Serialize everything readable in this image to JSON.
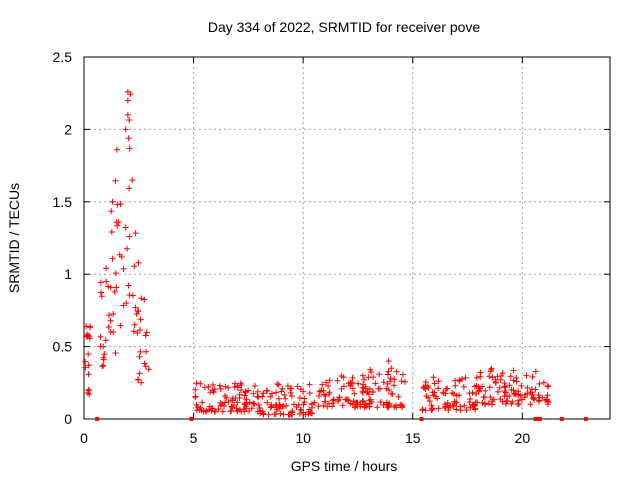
{
  "chart_data": {
    "type": "scatter",
    "title": "Day 334 of 2022, SRMTID for receiver pove",
    "xlabel": "GPS time / hours",
    "ylabel": "SRMTID / TECUs",
    "xlim": [
      0,
      24
    ],
    "ylim": [
      0,
      2.5
    ],
    "xticks": [
      0,
      5,
      10,
      15,
      20
    ],
    "yticks": [
      0,
      0.5,
      1,
      1.5,
      2,
      2.5
    ],
    "grid": true,
    "marker": "plus",
    "color": "#ff0000",
    "segments": [
      {
        "x_start": 0.0,
        "x_end": 0.3,
        "y_low": 0.15,
        "y_high": 0.45
      },
      {
        "x_start": 0.1,
        "x_end": 0.3,
        "y_low": 0.55,
        "y_high": 0.66
      },
      {
        "x_start": 0.6,
        "x_end": 1.0,
        "y_low": 0.35,
        "y_high": 1.0
      },
      {
        "x_start": 1.0,
        "x_end": 1.5,
        "y_low": 0.6,
        "y_high": 1.5
      },
      {
        "x_start": 1.4,
        "x_end": 1.8,
        "y_low": 0.3,
        "y_high": 1.8
      },
      {
        "x_start": 1.8,
        "x_end": 2.2,
        "y_low": 0.8,
        "y_high": 2.25
      },
      {
        "x_start": 2.2,
        "x_end": 2.5,
        "y_low": 0.4,
        "y_high": 1.6
      },
      {
        "x_start": 2.4,
        "x_end": 3.0,
        "y_low": 0.25,
        "y_high": 0.85
      },
      {
        "x_start": 5.0,
        "x_end": 8.0,
        "y_low": 0.05,
        "y_high": 0.25
      },
      {
        "x_start": 8.0,
        "x_end": 10.5,
        "y_low": 0.03,
        "y_high": 0.25
      },
      {
        "x_start": 10.5,
        "x_end": 13.0,
        "y_low": 0.08,
        "y_high": 0.3
      },
      {
        "x_start": 13.0,
        "x_end": 14.7,
        "y_low": 0.08,
        "y_high": 0.38
      },
      {
        "x_start": 15.4,
        "x_end": 18.0,
        "y_low": 0.06,
        "y_high": 0.3
      },
      {
        "x_start": 18.0,
        "x_end": 20.7,
        "y_low": 0.1,
        "y_high": 0.35
      },
      {
        "x_start": 20.7,
        "x_end": 21.2,
        "y_low": 0.1,
        "y_high": 0.28
      }
    ],
    "peaks": [
      {
        "x": 2.0,
        "y": 2.26
      },
      {
        "x": 2.0,
        "y": 2.2
      },
      {
        "x": 2.0,
        "y": 2.1
      },
      {
        "x": 1.5,
        "y": 1.86
      },
      {
        "x": 1.9,
        "y": 2.0
      },
      {
        "x": 1.3,
        "y": 1.5
      },
      {
        "x": 2.2,
        "y": 1.65
      },
      {
        "x": 0.1,
        "y": 0.64
      },
      {
        "x": 13.9,
        "y": 0.4
      },
      {
        "x": 18.6,
        "y": 0.35
      }
    ],
    "zero_points": [
      0.6,
      4.9,
      15.4,
      20.6,
      20.7,
      20.8,
      21.8,
      22.9
    ]
  }
}
